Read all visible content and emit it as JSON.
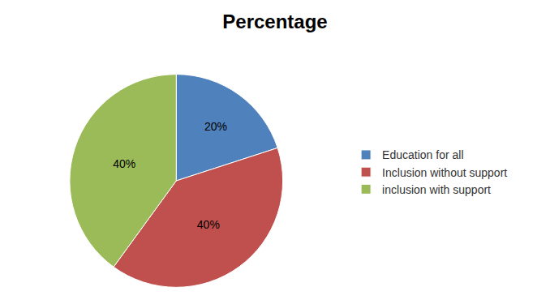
{
  "chart_data": {
    "type": "pie",
    "title": "Percentage",
    "categories": [
      "Education for all",
      "Inclusion without support",
      "inclusion with support"
    ],
    "values": [
      20,
      40,
      40
    ],
    "value_labels": [
      "20%",
      "40%",
      "40%"
    ],
    "colors": [
      "#4f81bd",
      "#c0504d",
      "#9bbb59"
    ],
    "data_labels": true,
    "legend": "right"
  }
}
